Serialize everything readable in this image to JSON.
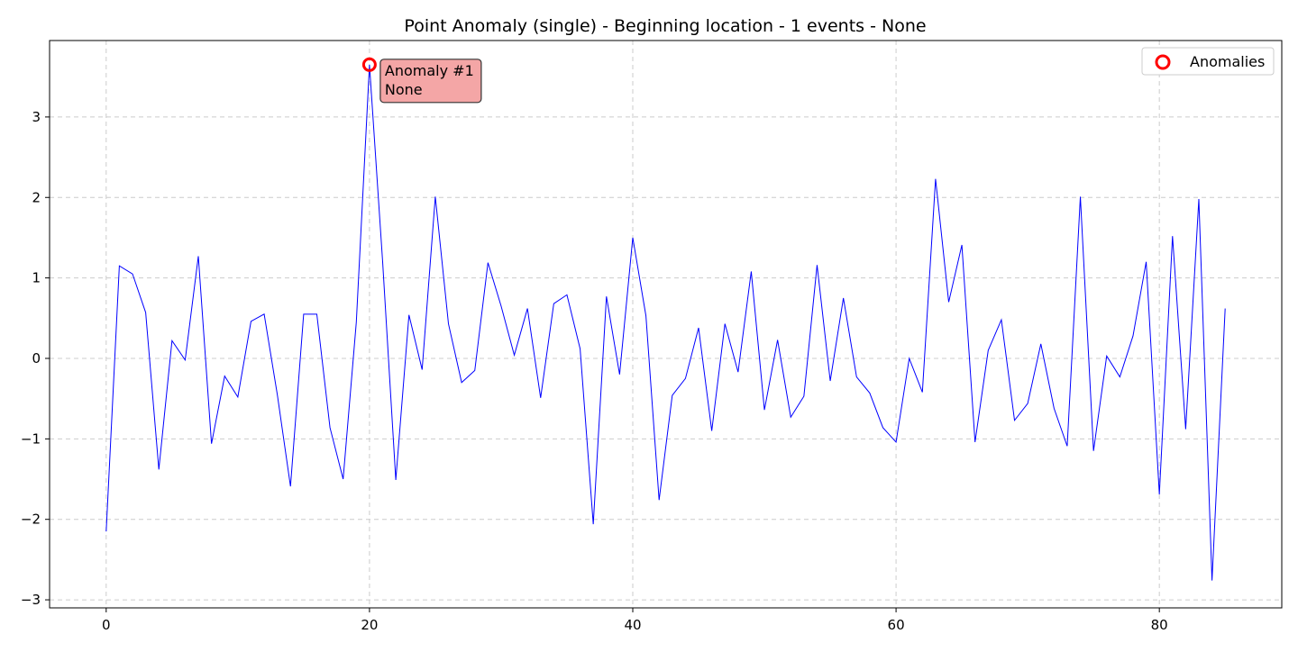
{
  "chart_data": {
    "type": "line",
    "title": "Point Anomaly (single) - Beginning location - 1 events - None",
    "xlabel": "",
    "ylabel": "",
    "xlim": [
      -4.3,
      89.3
    ],
    "ylim": [
      -3.1,
      3.95
    ],
    "grid": true,
    "x_ticks": [
      0,
      20,
      40,
      60,
      80
    ],
    "y_ticks": [
      -3,
      -2,
      -1,
      0,
      1,
      2,
      3
    ],
    "x_tick_labels": [
      "0",
      "20",
      "40",
      "60",
      "80"
    ],
    "y_tick_labels": [
      "−3",
      "−2",
      "−1",
      "0",
      "1",
      "2",
      "3"
    ],
    "series": [
      {
        "color": "#0000ff",
        "x": [
          0,
          1,
          2,
          3,
          4,
          5,
          6,
          7,
          8,
          9,
          10,
          11,
          12,
          13,
          14,
          15,
          16,
          17,
          18,
          19,
          20,
          21,
          22,
          23,
          24,
          25,
          26,
          27,
          28,
          29,
          30,
          31,
          32,
          33,
          34,
          35,
          36,
          37,
          38,
          39,
          40,
          41,
          42,
          43,
          44,
          45,
          46,
          47,
          48,
          49,
          50,
          51,
          52,
          53,
          54,
          55,
          56,
          57,
          58,
          59,
          60,
          61,
          62,
          63,
          64,
          65,
          66,
          67,
          68,
          69,
          70,
          71,
          72,
          73,
          74,
          75,
          76,
          77,
          78,
          79,
          80,
          81,
          82,
          83,
          84,
          85
        ],
        "values": [
          -2.15,
          1.15,
          1.05,
          0.57,
          -1.38,
          0.22,
          -0.02,
          1.27,
          -1.06,
          -0.22,
          -0.48,
          0.46,
          0.55,
          -0.45,
          -1.59,
          0.55,
          0.55,
          -0.86,
          -1.5,
          0.45,
          3.65,
          1.2,
          -1.51,
          0.54,
          -0.14,
          2.01,
          0.43,
          -0.3,
          -0.15,
          1.19,
          0.65,
          0.04,
          0.62,
          -0.49,
          0.68,
          0.79,
          0.12,
          -2.06,
          0.77,
          -0.2,
          1.5,
          0.53,
          -1.76,
          -0.46,
          -0.25,
          0.38,
          -0.9,
          0.43,
          -0.17,
          1.08,
          -0.64,
          0.23,
          -0.73,
          -0.47,
          1.16,
          -0.28,
          0.75,
          -0.23,
          -0.43,
          -0.86,
          -1.04,
          0.0,
          -0.42,
          2.23,
          0.7,
          1.41,
          -1.04,
          0.1,
          0.48,
          -0.77,
          -0.56,
          0.18,
          -0.62,
          -1.09,
          2.01,
          -1.15,
          0.03,
          -0.23,
          0.28,
          1.2,
          -1.69,
          1.52,
          -0.88,
          1.98,
          -2.76,
          0.62
        ]
      }
    ],
    "anomalies": {
      "legend_label": "Anomalies",
      "color": "#ff0000",
      "points": [
        {
          "x": 20,
          "y": 3.65,
          "label_line1": "Anomaly #1",
          "label_line2": "None"
        }
      ]
    },
    "legend_position": "top-right"
  }
}
